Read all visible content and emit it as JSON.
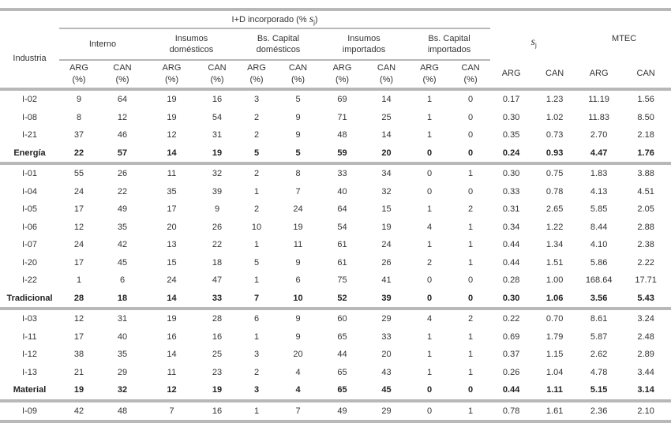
{
  "header": {
    "industria": "Industria",
    "group_title_prefix": "I+D incorporado (%",
    "group_title_symbol": "s",
    "group_title_sub": "j",
    "group_title_suffix": ")",
    "groups": [
      {
        "line1": "Interno",
        "line2": ""
      },
      {
        "line1": "Insumos",
        "line2": "domésticos"
      },
      {
        "line1": "Bs. Capital",
        "line2": "domésticos"
      },
      {
        "line1": "Insumos",
        "line2": "importados"
      },
      {
        "line1": "Bs. Capital",
        "line2": "importados"
      }
    ],
    "sj_symbol": "s",
    "sj_sub": "j",
    "mtec": "MTEC",
    "pct_cols": [
      {
        "country": "ARG",
        "unit": "(%)"
      },
      {
        "country": "CAN",
        "unit": "(%)"
      }
    ],
    "plain_cols": [
      "ARG",
      "CAN"
    ]
  },
  "rows": [
    {
      "name": "I-02",
      "values": [
        "9",
        "64",
        "19",
        "16",
        "3",
        "5",
        "69",
        "14",
        "1",
        "0",
        "0.17",
        "1.23",
        "11.19",
        "1.56"
      ],
      "total": false
    },
    {
      "name": "I-08",
      "values": [
        "8",
        "12",
        "19",
        "54",
        "2",
        "9",
        "71",
        "25",
        "1",
        "0",
        "0.30",
        "1.02",
        "11.83",
        "8.50"
      ],
      "total": false
    },
    {
      "name": "I-21",
      "values": [
        "37",
        "46",
        "12",
        "31",
        "2",
        "9",
        "48",
        "14",
        "1",
        "0",
        "0.35",
        "0.73",
        "2.70",
        "2.18"
      ],
      "total": false
    },
    {
      "name": "Energía",
      "values": [
        "22",
        "57",
        "14",
        "19",
        "5",
        "5",
        "59",
        "20",
        "0",
        "0",
        "0.24",
        "0.93",
        "4.47",
        "1.76"
      ],
      "total": true
    },
    {
      "name": "I-01",
      "values": [
        "55",
        "26",
        "11",
        "32",
        "2",
        "8",
        "33",
        "34",
        "0",
        "1",
        "0.30",
        "0.75",
        "1.83",
        "3.88"
      ],
      "total": false
    },
    {
      "name": "I-04",
      "values": [
        "24",
        "22",
        "35",
        "39",
        "1",
        "7",
        "40",
        "32",
        "0",
        "0",
        "0.33",
        "0.78",
        "4.13",
        "4.51"
      ],
      "total": false
    },
    {
      "name": "I-05",
      "values": [
        "17",
        "49",
        "17",
        "9",
        "2",
        "24",
        "64",
        "15",
        "1",
        "2",
        "0.31",
        "2.65",
        "5.85",
        "2.05"
      ],
      "total": false
    },
    {
      "name": "I-06",
      "values": [
        "12",
        "35",
        "20",
        "26",
        "10",
        "19",
        "54",
        "19",
        "4",
        "1",
        "0.34",
        "1.22",
        "8.44",
        "2.88"
      ],
      "total": false
    },
    {
      "name": "I-07",
      "values": [
        "24",
        "42",
        "13",
        "22",
        "1",
        "11",
        "61",
        "24",
        "1",
        "1",
        "0.44",
        "1.34",
        "4.10",
        "2.38"
      ],
      "total": false
    },
    {
      "name": "I-20",
      "values": [
        "17",
        "45",
        "15",
        "18",
        "5",
        "9",
        "61",
        "26",
        "2",
        "1",
        "0.44",
        "1.51",
        "5.86",
        "2.22"
      ],
      "total": false
    },
    {
      "name": "I-22",
      "values": [
        "1",
        "6",
        "24",
        "47",
        "1",
        "6",
        "75",
        "41",
        "0",
        "0",
        "0.28",
        "1.00",
        "168.64",
        "17.71"
      ],
      "total": false
    },
    {
      "name": "Tradicional",
      "values": [
        "28",
        "18",
        "14",
        "33",
        "7",
        "10",
        "52",
        "39",
        "0",
        "0",
        "0.30",
        "1.06",
        "3.56",
        "5.43"
      ],
      "total": true
    },
    {
      "name": "I-03",
      "values": [
        "12",
        "31",
        "19",
        "28",
        "6",
        "9",
        "60",
        "29",
        "4",
        "2",
        "0.22",
        "0.70",
        "8.61",
        "3.24"
      ],
      "total": false
    },
    {
      "name": "I-11",
      "values": [
        "17",
        "40",
        "16",
        "16",
        "1",
        "9",
        "65",
        "33",
        "1",
        "1",
        "0.69",
        "1.79",
        "5.87",
        "2.48"
      ],
      "total": false
    },
    {
      "name": "I-12",
      "values": [
        "38",
        "35",
        "14",
        "25",
        "3",
        "20",
        "44",
        "20",
        "1",
        "1",
        "0.37",
        "1.15",
        "2.62",
        "2.89"
      ],
      "total": false
    },
    {
      "name": "I-13",
      "values": [
        "21",
        "29",
        "11",
        "23",
        "2",
        "4",
        "65",
        "43",
        "1",
        "1",
        "0.26",
        "1.04",
        "4.78",
        "3.44"
      ],
      "total": false
    },
    {
      "name": "Material",
      "values": [
        "19",
        "32",
        "12",
        "19",
        "3",
        "4",
        "65",
        "45",
        "0",
        "0",
        "0.44",
        "1.11",
        "5.15",
        "3.14"
      ],
      "total": true
    },
    {
      "name": "I-09",
      "values": [
        "42",
        "48",
        "7",
        "16",
        "1",
        "7",
        "49",
        "29",
        "0",
        "1",
        "0.78",
        "1.61",
        "2.36",
        "2.10"
      ],
      "total": false
    }
  ]
}
